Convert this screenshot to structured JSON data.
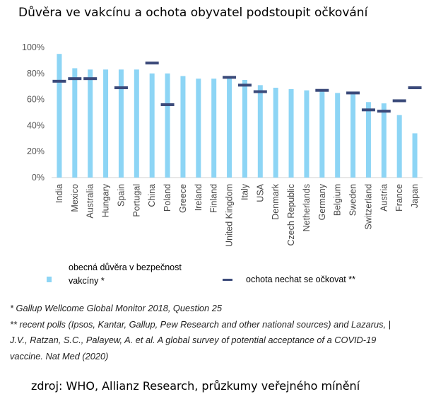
{
  "title": "Důvěra ve vakcínu a ochota obyvatel podstoupit očkování",
  "chart_data": {
    "type": "bar",
    "categories": [
      "India",
      "Mexico",
      "Australia",
      "Hungary",
      "Spain",
      "Portugal",
      "China",
      "Poland",
      "Greece",
      "Ireland",
      "Finland",
      "United Kingdom",
      "Italy",
      "USA",
      "Denmark",
      "Czech Republic",
      "Netherlands",
      "Germany",
      "Belgium",
      "Sweden",
      "Switzerland",
      "Austria",
      "France",
      "Japan"
    ],
    "series": [
      {
        "name": "obecná důvěra v bezpečnost vakcíny *",
        "kind": "bar",
        "color": "#8dd5f5",
        "values": [
          95,
          84,
          83,
          83,
          83,
          83,
          80,
          80,
          78,
          76,
          76,
          76,
          75,
          71,
          69,
          68,
          67,
          66,
          65,
          64,
          58,
          57,
          48,
          34
        ]
      },
      {
        "name": "ochota nechat se očkovat **",
        "kind": "marker",
        "color": "#3b4a7a",
        "values": [
          74,
          76,
          76,
          null,
          69,
          null,
          88,
          56,
          null,
          null,
          null,
          77,
          71,
          66,
          null,
          null,
          null,
          67,
          null,
          65,
          52,
          51,
          59,
          69
        ]
      }
    ],
    "yticks": [
      "0%",
      "20%",
      "40%",
      "60%",
      "80%",
      "100%"
    ],
    "ylim": [
      0,
      100
    ],
    "grid": false
  },
  "legend": {
    "bar_label": "obecná důvěra v bezpečnost vakcíny *",
    "marker_label": "ochota nechat se očkovat **"
  },
  "notes": [
    "* Gallup Wellcome Global Monitor 2018, Question 25",
    "** recent polls (Ipsos, Kantar, Gallup, Pew Research and other national sources) and Lazarus, |",
    "J.V., Ratzan, S.C., Palayew, A. et al. A global survey of potential acceptance of a COVID-19",
    "vaccine. Nat Med (2020)"
  ],
  "source": "zdroj: WHO, Allianz Research, průzkumy veřejného mínění"
}
